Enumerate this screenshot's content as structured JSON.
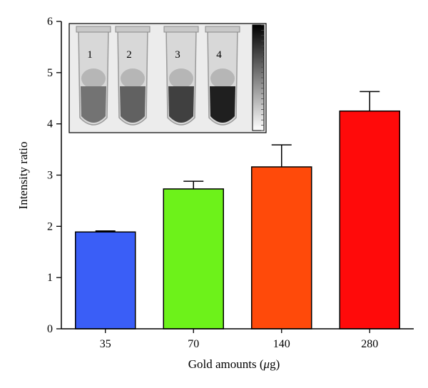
{
  "chart_data": {
    "type": "bar",
    "categories": [
      "35",
      "70",
      "140",
      "280"
    ],
    "values": [
      1.89,
      2.73,
      3.16,
      4.25
    ],
    "errors": [
      0.02,
      0.15,
      0.43,
      0.38
    ],
    "colors": [
      "#3a5ef7",
      "#6df21a",
      "#ff4a0a",
      "#ff0a0a"
    ],
    "xlabel_parts": [
      "Gold amounts (",
      "μ",
      "g)"
    ],
    "ylabel": "Intensity ratio",
    "ylim": [
      0,
      6
    ],
    "yticks": [
      "0",
      "1",
      "2",
      "3",
      "4",
      "5",
      "6"
    ],
    "grid": false,
    "inset": {
      "tube_labels": [
        "1",
        "2",
        "3",
        "4"
      ],
      "tube_darkness": [
        0.55,
        0.62,
        0.75,
        0.88
      ]
    }
  }
}
